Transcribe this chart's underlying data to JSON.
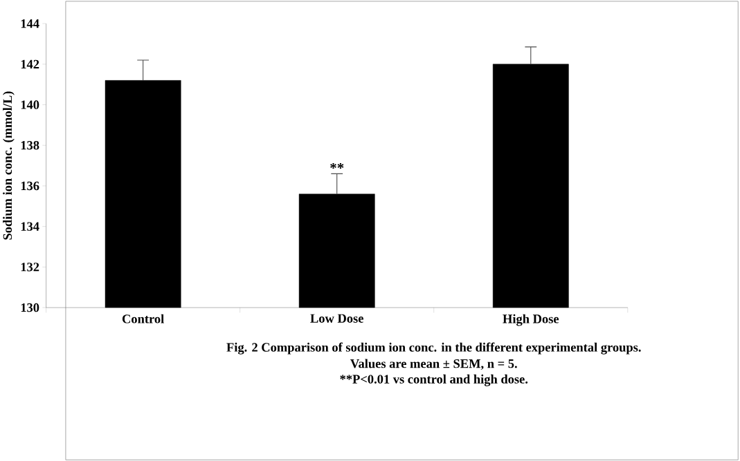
{
  "chart_data": {
    "type": "bar",
    "ylabel": "Sodium ion conc. (mmol/L)",
    "categories": [
      "Control",
      "Low Dose",
      "High Dose"
    ],
    "values": [
      141.2,
      135.6,
      142.0
    ],
    "errors": [
      [
        141.2,
        142.2
      ],
      [
        135.6,
        136.6
      ],
      [
        142.0,
        142.85
      ]
    ],
    "color": "#000000",
    "ylim": [
      130,
      144
    ],
    "yticks": [
      130,
      132,
      134,
      136,
      138,
      140,
      142,
      144
    ],
    "grid": false,
    "annotations": [
      {
        "text": "**",
        "x": "Low Dose",
        "y": 136.6
      },
      "Fig. 2 Comparison of sodium ion conc. in the different experimental groups.",
      "Values are mean ± SEM, n = 5.",
      "**P<0.01 vs control and high dose."
    ]
  }
}
